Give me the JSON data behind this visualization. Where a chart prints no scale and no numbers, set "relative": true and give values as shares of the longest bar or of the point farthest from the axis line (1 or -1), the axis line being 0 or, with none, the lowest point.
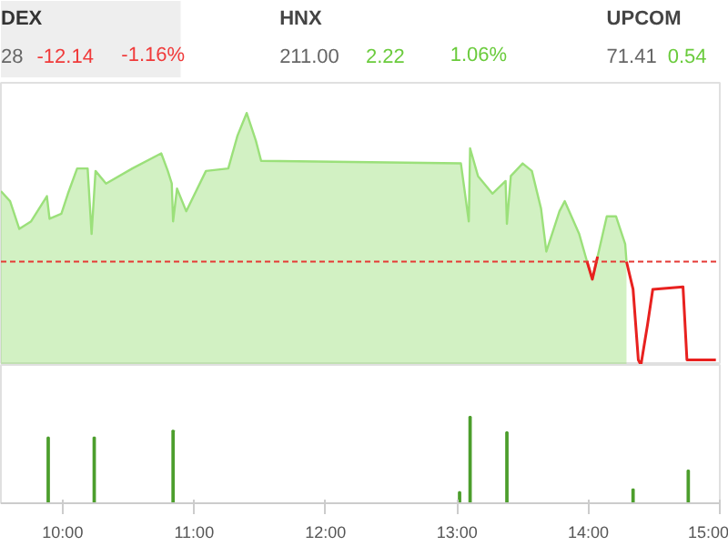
{
  "chart_data": [
    {
      "type": "other",
      "annotations": [
        "DEX",
        "28",
        "-12.14",
        "-1.16%",
        "HNX",
        "211.00",
        "2.22",
        "1.06%",
        "UPCOM",
        "71.41",
        "0.54"
      ],
      "colors": [
        "#333333",
        "#666666",
        "#f03a3a",
        "#f03a3a",
        "#444444",
        "#666666",
        "#6acb3c",
        "#6acb3c",
        "#444444",
        "#666666",
        "#6acb3c"
      ]
    },
    {
      "type": "area",
      "relative": true,
      "xlim": [
        9.53,
        15.0
      ],
      "tick_labels": false,
      "ref_lines": [
        {
          "axis": "y",
          "value": 0.41,
          "color": "#e53935",
          "line_style": "dashed"
        }
      ],
      "series": [
        {
          "color": "#9be07a",
          "x": [
            9.53,
            9.6,
            9.67,
            9.76,
            9.88,
            9.9,
            9.99,
            10.04,
            10.11,
            10.19,
            10.22,
            10.25,
            10.33,
            10.53,
            10.75,
            10.8,
            10.83,
            10.84,
            10.87,
            10.94,
            11.09,
            11.26,
            11.33,
            11.4,
            11.47,
            11.51,
            13.03,
            13.09,
            13.1,
            13.16,
            13.27,
            13.37,
            13.38,
            13.41,
            13.5,
            13.57,
            13.64,
            13.68,
            13.78,
            13.82,
            13.93,
            13.99,
            14.03,
            14.07,
            14.14,
            14.21,
            14.28,
            14.29
          ],
          "values": [
            0.69,
            0.65,
            0.54,
            0.57,
            0.67,
            0.58,
            0.6,
            0.68,
            0.78,
            0.78,
            0.52,
            0.77,
            0.72,
            0.78,
            0.84,
            0.77,
            0.72,
            0.57,
            0.7,
            0.61,
            0.77,
            0.78,
            0.91,
            1,
            0.89,
            0.81,
            0.8,
            0.57,
            0.86,
            0.75,
            0.68,
            0.73,
            0.56,
            0.75,
            0.8,
            0.77,
            0.62,
            0.45,
            0.61,
            0.65,
            0.52,
            0.41,
            0.34,
            0.43,
            0.59,
            0.59,
            0.48,
            0.41
          ]
        },
        {
          "type": "line",
          "color": "#e8211f",
          "x": [
            13.99,
            14.03,
            14.07,
            14.15,
            14.29,
            14.34,
            14.38,
            14.4,
            14.45,
            14.49,
            14.72,
            14.75,
            14.97
          ],
          "values": [
            0.41,
            0.34,
            0.43,
            null,
            0.41,
            0.3,
            0.02,
            0,
            0.16,
            0.3,
            0.31,
            0.02,
            0.02
          ]
        }
      ]
    },
    {
      "type": "bar",
      "relative": true,
      "xlim": [
        9.53,
        15.0
      ],
      "xticks": [
        {
          "value": 10,
          "label": "10:00"
        },
        {
          "value": 11,
          "label": "11:00"
        },
        {
          "value": 12,
          "label": "12:00"
        },
        {
          "value": 13,
          "label": "13:00"
        },
        {
          "value": 14,
          "label": "14:00"
        },
        {
          "value": 15,
          "label": "15:00"
        }
      ],
      "tick_labels": "x",
      "x": [
        9.89,
        10.24,
        10.84,
        13.02,
        13.1,
        13.38,
        14.34,
        14.76
      ],
      "values": [
        0.76,
        0.76,
        0.84,
        0.13,
        1,
        0.82,
        0.16,
        0.38
      ],
      "color": "#4c9e2c"
    }
  ]
}
